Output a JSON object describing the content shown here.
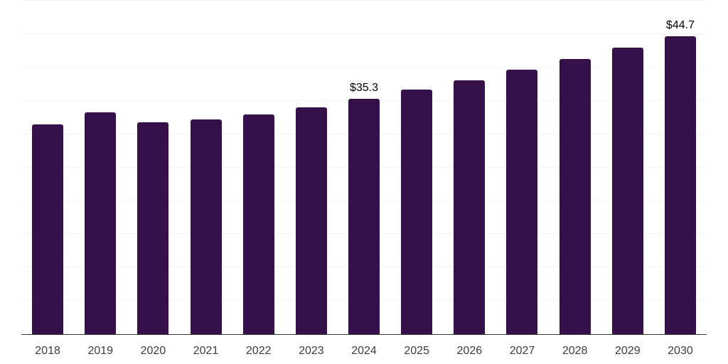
{
  "chart_data": {
    "type": "bar",
    "categories": [
      "2018",
      "2019",
      "2020",
      "2021",
      "2022",
      "2023",
      "2024",
      "2025",
      "2026",
      "2027",
      "2028",
      "2029",
      "2030"
    ],
    "values": [
      31.4,
      33.3,
      31.8,
      32.2,
      32.9,
      34.0,
      35.3,
      36.7,
      38.1,
      39.7,
      41.3,
      43.0,
      44.7
    ],
    "value_labels": [
      null,
      null,
      null,
      null,
      null,
      null,
      "$35.3",
      null,
      null,
      null,
      null,
      null,
      "$44.7"
    ],
    "title": "",
    "xlabel": "",
    "ylabel": "",
    "ylim": [
      0,
      50
    ],
    "gridline_interval": 5,
    "grid": true,
    "legend": false,
    "colors": {
      "bar": "#361149",
      "axis_line": "#333333",
      "gridline": "#f2f2f2",
      "tick_label": "#3d3d3d",
      "value_label": "#000000",
      "background": "#ffffff"
    }
  }
}
